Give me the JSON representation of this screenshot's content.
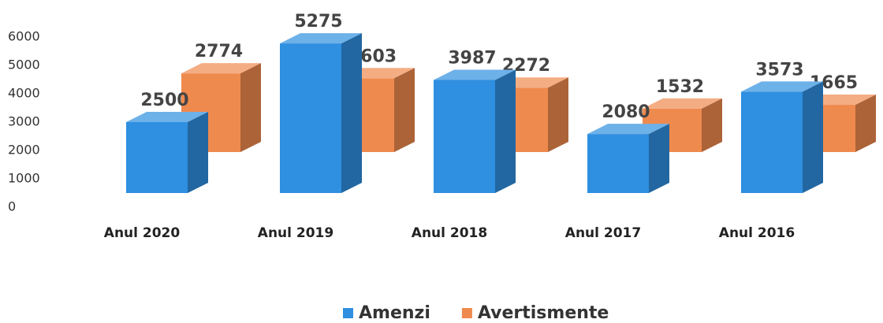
{
  "chart_data": {
    "type": "bar3d",
    "categories": [
      "Anul 2020",
      "Anul 2019",
      "Anul 2018",
      "Anul 2017",
      "Anul 2016"
    ],
    "series": [
      {
        "name": "Amenzi",
        "color": "#2f8fe0",
        "values": [
          2500,
          5275,
          3987,
          2080,
          3573
        ]
      },
      {
        "name": "Avertismente",
        "color": "#ef8a4e",
        "values": [
          2774,
          2603,
          2272,
          1532,
          1665
        ]
      }
    ],
    "ylim": [
      0,
      6000
    ],
    "yticks": [
      0,
      1000,
      2000,
      3000,
      4000,
      5000,
      6000
    ],
    "legend": "bottom"
  }
}
